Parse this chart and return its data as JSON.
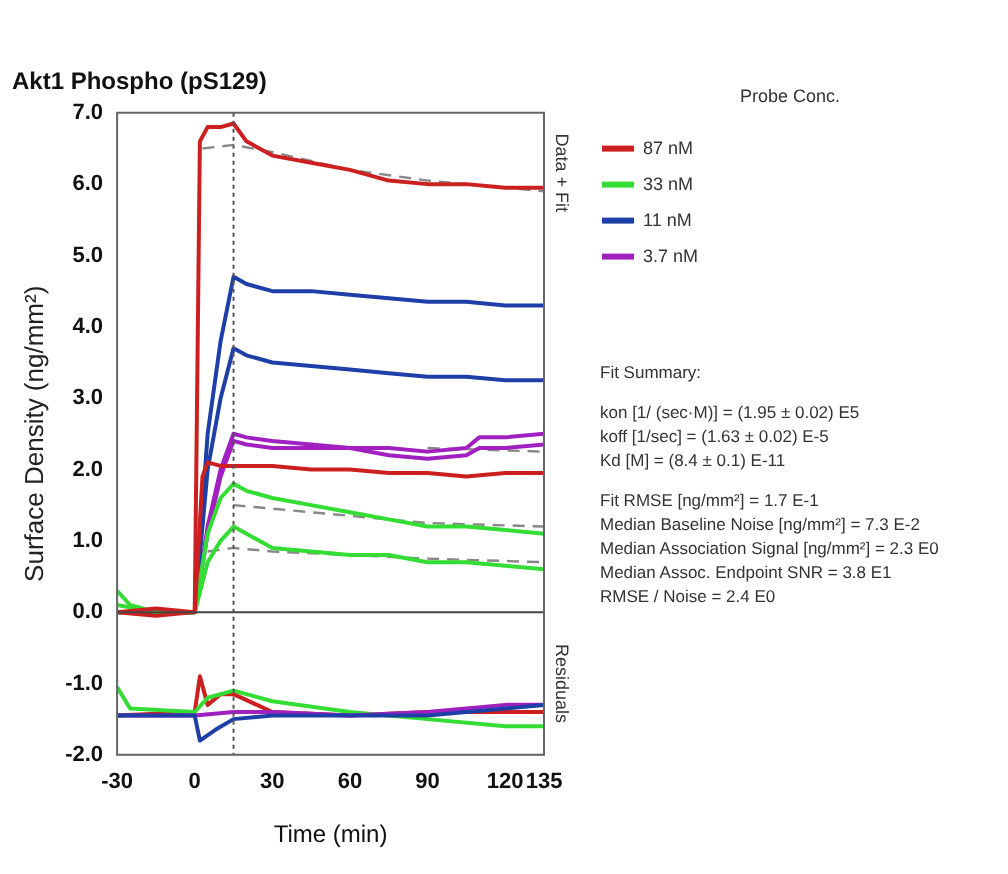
{
  "chart_data": {
    "type": "line",
    "title": "Akt1 Phospho (pS129)",
    "xlabel": "Time (min)",
    "ylabel": "Surface Density (ng/mm²)",
    "legend_title": "Probe Conc.",
    "legend": "right",
    "xlim": [
      -30,
      135
    ],
    "xticks": [
      -30,
      0,
      30,
      60,
      90,
      120,
      135
    ],
    "ylim": [
      -2,
      7
    ],
    "yticks": [
      {
        "value": -2,
        "label": "-2.0"
      },
      {
        "value": -1,
        "label": "-1.0"
      },
      {
        "value": 0,
        "label": "0.0"
      },
      {
        "value": 1,
        "label": "1.0"
      },
      {
        "value": 2,
        "label": "2.0"
      },
      {
        "value": 3,
        "label": "3.0"
      },
      {
        "value": 4,
        "label": "4.0"
      },
      {
        "value": 5,
        "label": "5.0"
      },
      {
        "value": 6,
        "label": "6.0"
      },
      {
        "value": 7,
        "label": "7.0"
      }
    ],
    "grid": false,
    "marker": "none",
    "line_style": "solid",
    "series": [
      {
        "name": "87 nM",
        "color": "#cc2020",
        "x": [
          -30,
          -15,
          0,
          2,
          5,
          10,
          15,
          20,
          30,
          45,
          60,
          75,
          90,
          105,
          120,
          135
        ],
        "values": [
          0,
          0.05,
          0,
          6.6,
          6.8,
          6.8,
          6.85,
          6.6,
          6.4,
          6.3,
          6.2,
          6.05,
          6.0,
          6.0,
          5.95,
          5.95
        ]
      },
      {
        "color": "#cc2020",
        "x": [
          -30,
          -15,
          0,
          3,
          5,
          10,
          15,
          30,
          45,
          60,
          75,
          90,
          105,
          120,
          135
        ],
        "values": [
          0,
          -0.05,
          0,
          1.9,
          2.1,
          2.05,
          2.05,
          2.05,
          2.0,
          2.0,
          1.95,
          1.95,
          1.9,
          1.95,
          1.95
        ]
      },
      {
        "name": "33 nM",
        "color": "#33dd33",
        "x": [
          -30,
          -25,
          -15,
          0,
          5,
          10,
          15,
          20,
          30,
          45,
          60,
          75,
          90,
          105,
          120,
          135
        ],
        "values": [
          0.3,
          0.1,
          0,
          0,
          1.1,
          1.6,
          1.8,
          1.7,
          1.6,
          1.5,
          1.4,
          1.3,
          1.2,
          1.2,
          1.15,
          1.1
        ]
      },
      {
        "color": "#33dd33",
        "x": [
          -30,
          -15,
          0,
          5,
          10,
          15,
          20,
          30,
          45,
          60,
          75,
          90,
          105,
          120,
          135
        ],
        "values": [
          0.1,
          0,
          0,
          0.7,
          1.0,
          1.2,
          1.1,
          0.9,
          0.85,
          0.8,
          0.8,
          0.7,
          0.7,
          0.65,
          0.6
        ]
      },
      {
        "name": "11 nM",
        "color": "#1f3fa8",
        "x": [
          -30,
          -15,
          0,
          5,
          10,
          15,
          20,
          30,
          45,
          60,
          75,
          90,
          105,
          120,
          135
        ],
        "values": [
          0,
          0,
          0,
          2.5,
          3.8,
          4.7,
          4.6,
          4.5,
          4.5,
          4.45,
          4.4,
          4.35,
          4.35,
          4.3,
          4.3
        ]
      },
      {
        "color": "#1f3fa8",
        "x": [
          -30,
          -15,
          0,
          5,
          10,
          15,
          20,
          30,
          45,
          60,
          75,
          90,
          105,
          120,
          135
        ],
        "values": [
          0,
          0,
          0,
          2.0,
          3.0,
          3.7,
          3.6,
          3.5,
          3.45,
          3.4,
          3.35,
          3.3,
          3.3,
          3.25,
          3.25
        ]
      },
      {
        "name": "3.7 nM",
        "color": "#a020c0",
        "x": [
          0,
          5,
          10,
          15,
          20,
          30,
          45,
          60,
          75,
          90,
          105,
          110,
          120,
          135
        ],
        "values": [
          0,
          1.2,
          2.0,
          2.5,
          2.45,
          2.4,
          2.35,
          2.3,
          2.3,
          2.25,
          2.3,
          2.45,
          2.45,
          2.5
        ]
      },
      {
        "color": "#a020c0",
        "x": [
          0,
          5,
          10,
          15,
          20,
          30,
          45,
          60,
          75,
          90,
          105,
          110,
          120,
          135
        ],
        "values": [
          0,
          1.1,
          1.9,
          2.4,
          2.35,
          2.3,
          2.3,
          2.3,
          2.2,
          2.15,
          2.2,
          2.3,
          2.3,
          2.35
        ]
      },
      {
        "color": "#888888",
        "line_style": "dashed",
        "x": [
          3,
          15,
          30,
          60,
          90,
          135
        ],
        "values": [
          6.5,
          6.55,
          6.45,
          6.2,
          6.05,
          5.9
        ]
      },
      {
        "color": "#888888",
        "line_style": "dashed",
        "x": [
          15,
          30,
          60,
          90,
          135
        ],
        "values": [
          1.5,
          1.45,
          1.35,
          1.25,
          1.2
        ]
      },
      {
        "color": "#888888",
        "line_style": "dashed",
        "x": [
          5,
          15,
          30,
          60,
          90,
          135
        ],
        "values": [
          0.85,
          0.9,
          0.85,
          0.8,
          0.75,
          0.7
        ]
      },
      {
        "color": "#888888",
        "line_style": "dashed",
        "x": [
          90,
          135
        ],
        "values": [
          2.3,
          2.25
        ]
      },
      {
        "color": "#1f3fa8",
        "x": [
          -30,
          0,
          2,
          8,
          15,
          30,
          60,
          90,
          120,
          135
        ],
        "values": [
          -1.45,
          -1.45,
          -1.8,
          -1.65,
          -1.5,
          -1.45,
          -1.45,
          -1.45,
          -1.35,
          -1.3
        ]
      },
      {
        "color": "#a020c0",
        "x": [
          -30,
          0,
          15,
          30,
          60,
          90,
          120,
          135
        ],
        "values": [
          -1.45,
          -1.45,
          -1.4,
          -1.4,
          -1.45,
          -1.4,
          -1.3,
          -1.3
        ]
      },
      {
        "color": "#33dd33",
        "x": [
          -30,
          -25,
          0,
          5,
          15,
          30,
          60,
          90,
          120,
          135
        ],
        "values": [
          -1.05,
          -1.35,
          -1.4,
          -1.2,
          -1.1,
          -1.25,
          -1.4,
          -1.5,
          -1.6,
          -1.6
        ]
      },
      {
        "color": "#cc2020",
        "x": [
          -30,
          0,
          2,
          5,
          10,
          15,
          30,
          60,
          90,
          120,
          135
        ],
        "values": [
          -1.45,
          -1.4,
          -0.9,
          -1.3,
          -1.15,
          -1.15,
          -1.4,
          -1.45,
          -1.4,
          -1.4,
          -1.4
        ]
      }
    ],
    "ref_lines": [
      {
        "axis": "x",
        "value": 15,
        "color": "#555555",
        "line_style": "dotted"
      },
      {
        "axis": "y",
        "value": 0,
        "color": "#444444",
        "line_style": "solid"
      }
    ],
    "annotations": [
      "Data + Fit",
      "Residuals",
      "Fit Summary:",
      "kon  [1/ (sec·M)]  =  (1.95 ± 0.02) E5",
      "koff  [1/sec]  =  (1.63 ± 0.02) E-5",
      "Kd  [M]  =  (8.4 ± 0.1) E-11",
      "Fit RMSE [ng/mm²]  =  1.7 E-1",
      "Median Baseline Noise [ng/mm²]  =  7.3 E-2",
      "Median Association Signal [ng/mm²]  =  2.3 E0",
      "Median Assoc. Endpoint SNR  =  3.8 E1",
      "RMSE / Noise  =  2.4 E0"
    ]
  }
}
